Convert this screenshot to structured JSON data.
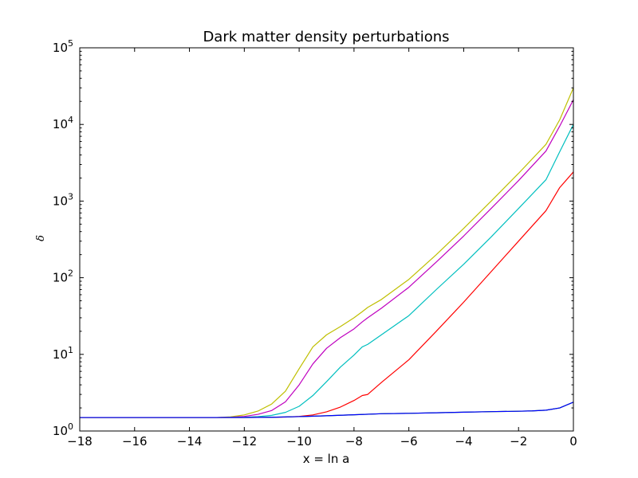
{
  "chart_data": {
    "type": "line",
    "title": "Dark matter density perturbations",
    "xlabel": "x = ln a",
    "ylabel": "δ",
    "xlim": [
      -18,
      0
    ],
    "ylim": [
      1,
      100000
    ],
    "yscale": "log",
    "grid": false,
    "x_ticks": [
      -18,
      -16,
      -14,
      -12,
      -10,
      -8,
      -6,
      -4,
      -2,
      0
    ],
    "x_tick_labels": [
      "−18",
      "−16",
      "−14",
      "−12",
      "−10",
      "−8",
      "−6",
      "−4",
      "−2",
      "0"
    ],
    "y_ticks": [
      {
        "value": 1,
        "base": "10",
        "exp": "0"
      },
      {
        "value": 10,
        "base": "10",
        "exp": "1"
      },
      {
        "value": 100,
        "base": "10",
        "exp": "2"
      },
      {
        "value": 1000,
        "base": "10",
        "exp": "3"
      },
      {
        "value": 10000,
        "base": "10",
        "exp": "4"
      },
      {
        "value": 100000,
        "base": "10",
        "exp": "5"
      }
    ],
    "series": [
      {
        "color": "#bfbf00",
        "x": [
          -18,
          -14,
          -13,
          -12.5,
          -12,
          -11.5,
          -11,
          -10.5,
          -10,
          -9.5,
          -9,
          -8.5,
          -8,
          -7.7,
          -7.5,
          -7,
          -6,
          -5,
          -4,
          -3,
          -2,
          -1,
          -0.5,
          0
        ],
        "y": [
          1.5,
          1.5,
          1.5,
          1.53,
          1.62,
          1.82,
          2.25,
          3.3,
          6.5,
          12.5,
          18,
          23,
          30,
          36,
          41,
          52,
          95,
          200,
          440,
          1000,
          2300,
          5500,
          11500,
          30000
        ]
      },
      {
        "color": "#bf00bf",
        "x": [
          -18,
          -14,
          -13,
          -12.5,
          -12,
          -11.5,
          -11,
          -10.5,
          -10,
          -9.5,
          -9,
          -8.5,
          -8,
          -7.7,
          -7.5,
          -7,
          -6,
          -5,
          -4,
          -3,
          -2,
          -1,
          -0.5,
          0
        ],
        "y": [
          1.5,
          1.5,
          1.5,
          1.51,
          1.55,
          1.65,
          1.85,
          2.4,
          4.0,
          7.5,
          12,
          16.5,
          21.5,
          26.5,
          30,
          40,
          75,
          160,
          350,
          800,
          1850,
          4500,
          9500,
          21000
        ]
      },
      {
        "color": "#00bfbf",
        "x": [
          -18,
          -14,
          -13,
          -12,
          -11.5,
          -11,
          -10.5,
          -10,
          -9.5,
          -9,
          -8.5,
          -8,
          -7.7,
          -7.5,
          -7,
          -6,
          -5,
          -4,
          -3,
          -2,
          -1,
          -0.5,
          0
        ],
        "y": [
          1.5,
          1.5,
          1.5,
          1.51,
          1.54,
          1.6,
          1.75,
          2.1,
          2.9,
          4.4,
          6.8,
          9.8,
          12.5,
          13.5,
          18,
          32,
          70,
          150,
          340,
          800,
          1900,
          4400,
          10000
        ]
      },
      {
        "color": "#ff0000",
        "x": [
          -18,
          -14,
          -13,
          -12,
          -11,
          -10.5,
          -10,
          -9.5,
          -9,
          -8.5,
          -8,
          -7.7,
          -7.5,
          -7,
          -6,
          -5,
          -4,
          -3,
          -2,
          -1,
          -0.5,
          0
        ],
        "y": [
          1.5,
          1.5,
          1.5,
          1.5,
          1.51,
          1.52,
          1.55,
          1.62,
          1.78,
          2.05,
          2.5,
          2.9,
          3.0,
          4.3,
          8.5,
          20,
          48,
          120,
          300,
          750,
          1500,
          2400
        ]
      },
      {
        "color": "#008000",
        "x": [
          -18,
          -14,
          -12,
          -11,
          -10,
          -9,
          -8,
          -7,
          -6,
          -5,
          -4,
          -3,
          -2,
          -1.5,
          -1,
          -0.5,
          0
        ],
        "y": [
          1.5,
          1.5,
          1.5,
          1.51,
          1.54,
          1.58,
          1.63,
          1.68,
          1.7,
          1.73,
          1.76,
          1.79,
          1.81,
          1.83,
          1.87,
          2.0,
          2.38
        ]
      },
      {
        "color": "#0000ff",
        "x": [
          -18,
          -14,
          -12,
          -11,
          -10,
          -9,
          -8,
          -7,
          -6,
          -5,
          -4,
          -3,
          -2,
          -1.5,
          -1,
          -0.5,
          0
        ],
        "y": [
          1.5,
          1.5,
          1.5,
          1.51,
          1.54,
          1.58,
          1.63,
          1.68,
          1.7,
          1.73,
          1.76,
          1.79,
          1.81,
          1.83,
          1.87,
          2.0,
          2.38
        ]
      }
    ]
  }
}
